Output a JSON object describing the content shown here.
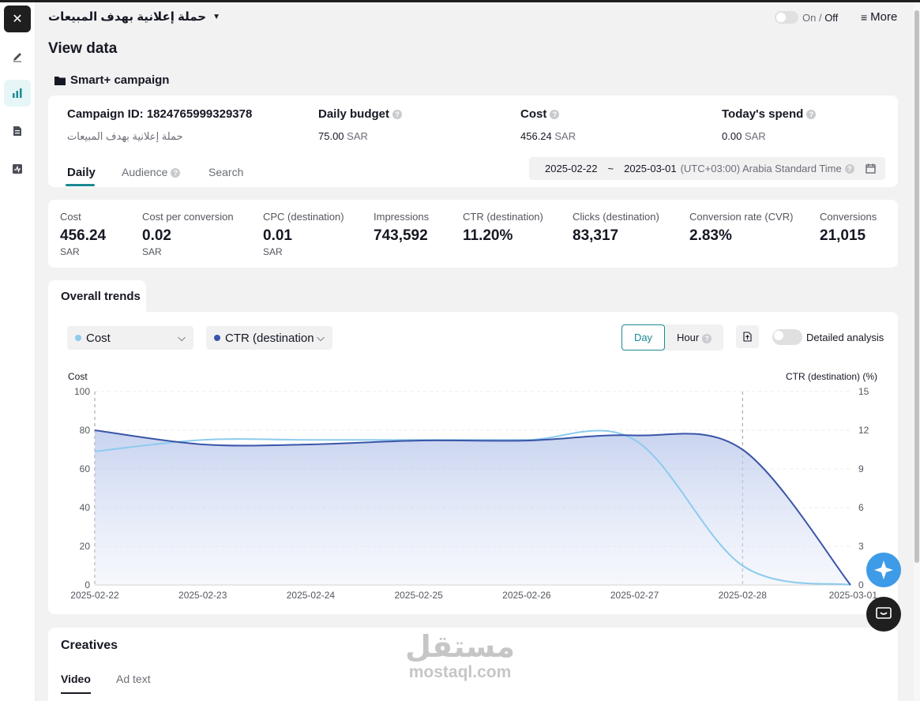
{
  "header": {
    "campaign_name": "حملة إعلانية بهدف المبيعات",
    "on_label": "On",
    "off_label": "Off",
    "more_label": "More"
  },
  "page_title": "View data",
  "section_title": "Smart+ campaign",
  "info": {
    "campaign_id_label": "Campaign ID: 1824765999329378",
    "campaign_sub": "حملة إعلانية بهدف المبيعات",
    "budget_label": "Daily budget",
    "budget_value": "75.00",
    "budget_unit": "SAR",
    "cost_label": "Cost",
    "cost_value": "456.24",
    "cost_unit": "SAR",
    "spend_label": "Today's spend",
    "spend_value": "0.00",
    "spend_unit": "SAR"
  },
  "tabs": [
    "Daily",
    "Audience",
    "Search"
  ],
  "date_range": {
    "start": "2025-02-22",
    "sep": "~",
    "end": "2025-03-01",
    "tz": "(UTC+03:00) Arabia Standard Time"
  },
  "metrics": [
    {
      "label": "Cost",
      "value": "456.24",
      "unit": "SAR"
    },
    {
      "label": "Cost per conversion",
      "value": "0.02",
      "unit": "SAR"
    },
    {
      "label": "CPC (destination)",
      "value": "0.01",
      "unit": "SAR"
    },
    {
      "label": "Impressions",
      "value": "743,592",
      "unit": ""
    },
    {
      "label": "CTR (destination)",
      "value": "11.20%",
      "unit": ""
    },
    {
      "label": "Clicks (destination)",
      "value": "83,317",
      "unit": ""
    },
    {
      "label": "Conversion rate (CVR)",
      "value": "2.83%",
      "unit": ""
    },
    {
      "label": "Conversions",
      "value": "21,015",
      "unit": ""
    }
  ],
  "trends": {
    "tab_label": "Overall trends",
    "metric1": "Cost",
    "metric2": "CTR (destination",
    "day_label": "Day",
    "hour_label": "Hour",
    "detailed_label": "Detailed analysis"
  },
  "chart_data": {
    "type": "line",
    "x": [
      "2025-02-22",
      "2025-02-23",
      "2025-02-24",
      "2025-02-25",
      "2025-02-26",
      "2025-02-27",
      "2025-02-28",
      "2025-03-01"
    ],
    "series": [
      {
        "name": "Cost",
        "axis": "left",
        "color": "#8ccbee",
        "values": [
          69,
          75,
          75,
          75,
          75,
          75,
          10,
          0
        ]
      },
      {
        "name": "CTR (destination) (%)",
        "axis": "right",
        "color": "#3a55a8",
        "values": [
          12,
          10.9,
          10.9,
          11.2,
          11.2,
          11.6,
          10.5,
          0
        ]
      }
    ],
    "ylabel_left": "Cost",
    "ylabel_right": "CTR (destination) (%)",
    "ylim_left": [
      0,
      100
    ],
    "yticks_left": [
      "100",
      "80",
      "60",
      "40",
      "20",
      "0"
    ],
    "ylim_right": [
      0,
      15
    ],
    "yticks_right": [
      "15",
      "12",
      "9",
      "6",
      "3",
      "0"
    ],
    "grid": true
  },
  "creatives": {
    "title": "Creatives",
    "tab_video": "Video",
    "tab_adtext": "Ad text"
  },
  "watermark": {
    "arabic": "مستقل",
    "latin": "mostaql.com"
  },
  "colors": {
    "accent": "#1b8a93",
    "cost_series": "#8ccbee",
    "ctr_series": "#3a55a8"
  }
}
